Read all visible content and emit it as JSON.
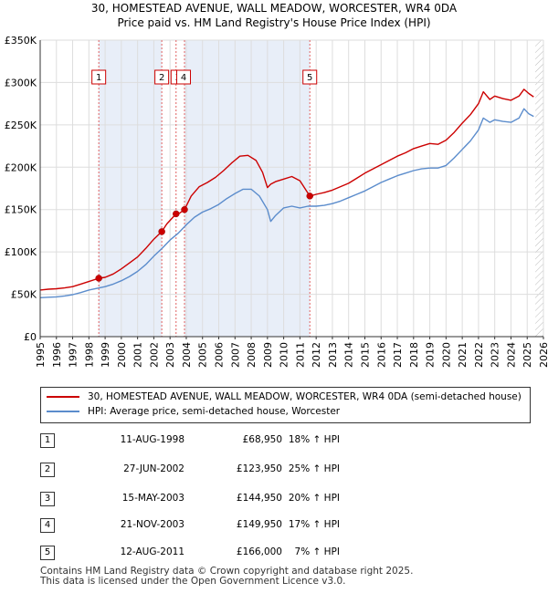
{
  "chart_data": {
    "type": "line",
    "title": "30, HOMESTEAD AVENUE, WALL MEADOW, WORCESTER, WR4 0DA",
    "subtitle": "Price paid vs. HM Land Registry's House Price Index (HPI)",
    "xlabel": "",
    "ylabel": "",
    "xlim": [
      1995,
      2026
    ],
    "ylim": [
      0,
      350000
    ],
    "y_ticks": [
      {
        "value": 0,
        "label": "£0"
      },
      {
        "value": 50000,
        "label": "£50K"
      },
      {
        "value": 100000,
        "label": "£100K"
      },
      {
        "value": 150000,
        "label": "£150K"
      },
      {
        "value": 200000,
        "label": "£200K"
      },
      {
        "value": 250000,
        "label": "£250K"
      },
      {
        "value": 300000,
        "label": "£300K"
      },
      {
        "value": 350000,
        "label": "£350K"
      }
    ],
    "x_ticks": [
      "1995",
      "1996",
      "1997",
      "1998",
      "1999",
      "2000",
      "2001",
      "2002",
      "2003",
      "2004",
      "2005",
      "2006",
      "2007",
      "2008",
      "2009",
      "2010",
      "2011",
      "2012",
      "2013",
      "2014",
      "2015",
      "2016",
      "2017",
      "2018",
      "2019",
      "2020",
      "2021",
      "2022",
      "2023",
      "2024",
      "2025",
      "2026"
    ],
    "grid": true,
    "series": [
      {
        "name": "30, HOMESTEAD AVENUE, WALL MEADOW, WORCESTER, WR4 0DA (semi-detached house)",
        "color": "#cc0000",
        "x": [
          1995.0,
          1995.5,
          1996.0,
          1996.5,
          1997.0,
          1997.5,
          1998.0,
          1998.61,
          1999.0,
          1999.5,
          2000.0,
          2000.5,
          2001.0,
          2001.5,
          2002.0,
          2002.49,
          2002.8,
          2003.37,
          2003.6,
          2003.89,
          2004.3,
          2004.8,
          2005.3,
          2005.8,
          2006.3,
          2006.8,
          2007.3,
          2007.8,
          2008.3,
          2008.7,
          2009.0,
          2009.2,
          2009.5,
          2010.0,
          2010.5,
          2011.0,
          2011.61,
          2012.0,
          2012.5,
          2013.0,
          2013.5,
          2014.0,
          2014.5,
          2015.0,
          2015.5,
          2016.0,
          2016.5,
          2017.0,
          2017.5,
          2018.0,
          2018.5,
          2019.0,
          2019.5,
          2020.0,
          2020.5,
          2021.0,
          2021.5,
          2022.0,
          2022.3,
          2022.7,
          2023.0,
          2023.5,
          2024.0,
          2024.5,
          2024.8,
          2025.1,
          2025.4
        ],
        "values": [
          55000,
          56000,
          56500,
          57500,
          59000,
          62000,
          65000,
          68950,
          70000,
          74000,
          80000,
          87000,
          94000,
          104000,
          115000,
          123950,
          133000,
          144950,
          146000,
          149950,
          166000,
          177000,
          182000,
          188000,
          196000,
          205000,
          213000,
          214000,
          208000,
          194000,
          176000,
          180000,
          183000,
          186000,
          189000,
          184000,
          166000,
          168000,
          170000,
          173000,
          177000,
          181000,
          187000,
          193000,
          198000,
          203000,
          208000,
          213000,
          217000,
          222000,
          225000,
          228000,
          227000,
          232000,
          241000,
          252000,
          262000,
          275000,
          289000,
          280000,
          284000,
          281000,
          279000,
          284000,
          292000,
          287000,
          283000
        ]
      },
      {
        "name": "HPI: Average price, semi-detached house, Worcester",
        "color": "#5b8ccc",
        "x": [
          1995.0,
          1995.5,
          1996.0,
          1996.5,
          1997.0,
          1997.5,
          1998.0,
          1998.5,
          1999.0,
          1999.5,
          2000.0,
          2000.5,
          2001.0,
          2001.5,
          2002.0,
          2002.5,
          2003.0,
          2003.5,
          2004.0,
          2004.5,
          2005.0,
          2005.5,
          2006.0,
          2006.5,
          2007.0,
          2007.5,
          2008.0,
          2008.5,
          2009.0,
          2009.2,
          2009.5,
          2010.0,
          2010.5,
          2011.0,
          2011.5,
          2012.0,
          2012.5,
          2013.0,
          2013.5,
          2014.0,
          2014.5,
          2015.0,
          2015.5,
          2016.0,
          2016.5,
          2017.0,
          2017.5,
          2018.0,
          2018.5,
          2019.0,
          2019.5,
          2020.0,
          2020.5,
          2021.0,
          2021.5,
          2022.0,
          2022.3,
          2022.7,
          2023.0,
          2023.5,
          2024.0,
          2024.5,
          2024.8,
          2025.1,
          2025.4
        ],
        "values": [
          46000,
          46500,
          47000,
          48000,
          49500,
          52000,
          55000,
          57000,
          59000,
          62000,
          66000,
          71000,
          77000,
          85000,
          95000,
          104000,
          114000,
          122000,
          132000,
          141000,
          147000,
          151000,
          156000,
          163000,
          169000,
          174000,
          174000,
          166000,
          150000,
          136000,
          143000,
          152000,
          154000,
          152000,
          154000,
          154000,
          155000,
          157000,
          160000,
          164000,
          168000,
          172000,
          177000,
          182000,
          186000,
          190000,
          193000,
          196000,
          198000,
          199000,
          199000,
          202000,
          211000,
          221000,
          231000,
          244000,
          258000,
          253000,
          256000,
          254000,
          253000,
          258000,
          269000,
          263000,
          260000
        ]
      }
    ],
    "sales": [
      {
        "num": "1",
        "x": 1998.61,
        "value": 68950,
        "date": "11-AUG-1998",
        "price": "£68,950",
        "hpi": "18% ↑ HPI"
      },
      {
        "num": "2",
        "x": 2002.49,
        "value": 123950,
        "date": "27-JUN-2002",
        "price": "£123,950",
        "hpi": "25% ↑ HPI"
      },
      {
        "num": "3",
        "x": 2003.37,
        "value": 144950,
        "date": "15-MAY-2003",
        "price": "£144,950",
        "hpi": "20% ↑ HPI"
      },
      {
        "num": "4",
        "x": 2003.89,
        "value": 149950,
        "date": "21-NOV-2003",
        "price": "£149,950",
        "hpi": "17% ↑ HPI"
      },
      {
        "num": "5",
        "x": 2011.61,
        "value": 166000,
        "date": "12-AUG-2011",
        "price": "£166,000",
        "hpi": "7% ↑ HPI"
      }
    ],
    "shaded_ranges": [
      [
        1998.61,
        2002.49
      ],
      [
        2003.89,
        2011.61
      ]
    ],
    "forecast_start": 2025.5
  },
  "legend": {
    "property_label": "30, HOMESTEAD AVENUE, WALL MEADOW, WORCESTER, WR4 0DA (semi-detached house)",
    "hpi_label": "HPI: Average price, semi-detached house, Worcester"
  },
  "footer": {
    "line1": "Contains HM Land Registry data © Crown copyright and database right 2025.",
    "line2": "This data is licensed under the Open Government Licence v3.0."
  }
}
